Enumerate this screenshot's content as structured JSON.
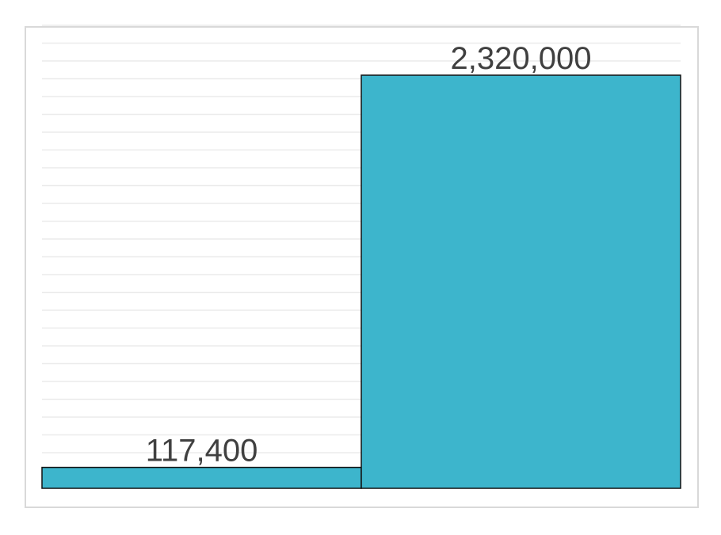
{
  "chart_data": {
    "type": "bar",
    "categories": [
      "",
      ""
    ],
    "values": [
      117400,
      2320000
    ],
    "data_labels": [
      "117,400",
      "2,320,000"
    ],
    "title": "",
    "xlabel": "",
    "ylabel": "",
    "ylim": [
      0,
      2600000
    ],
    "grid": true,
    "legend": "none",
    "colors": {
      "bar": "#3db5cc",
      "bar_border": "#111111",
      "gridline": "#ebebeb",
      "frame": "#d9d9d9",
      "label": "#404040"
    }
  }
}
